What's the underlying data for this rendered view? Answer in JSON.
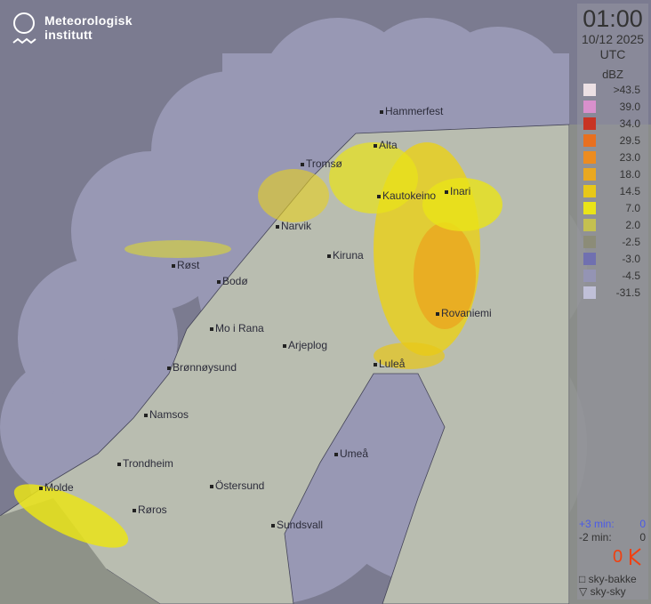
{
  "logo": {
    "line1": "Meteorologisk",
    "line2": "institutt"
  },
  "timestamp": {
    "time": "01:00",
    "date": "10/12 2025",
    "zone": "UTC"
  },
  "legend": {
    "unit": "dBZ",
    "items": [
      {
        "label": ">43.5",
        "color": "#ece0e4"
      },
      {
        "label": "39.0",
        "color": "#d890cc"
      },
      {
        "label": "34.0",
        "color": "#c83424"
      },
      {
        "label": "29.5",
        "color": "#e87020"
      },
      {
        "label": "23.0",
        "color": "#ec8c20"
      },
      {
        "label": "18.0",
        "color": "#eaa820"
      },
      {
        "label": "14.5",
        "color": "#e8c818"
      },
      {
        "label": "7.0",
        "color": "#eae418"
      },
      {
        "label": "2.0",
        "color": "#c4c050"
      },
      {
        "label": "-2.5",
        "color": "#8c8c78"
      },
      {
        "label": "-3.0",
        "color": "#7070b0"
      },
      {
        "label": "-4.5",
        "color": "#9494b4"
      },
      {
        "label": "-31.5",
        "color": "#c0c0d8"
      }
    ]
  },
  "minutes": {
    "plus_label": "+3 min:",
    "plus_value": "0",
    "minus_label": "-2 min:",
    "minus_value": "0"
  },
  "lightning": {
    "count": "0",
    "icon": "lightning-icon",
    "color": "#f04010"
  },
  "station_types": [
    {
      "label": "sky-bakke",
      "icon": "square-icon"
    },
    {
      "label": "sky-sky",
      "icon": "triangle-down-icon"
    }
  ],
  "cities": [
    "Hammerfest",
    "Alta",
    "Tromsø",
    "Kautokeino",
    "Inari",
    "Narvik",
    "Kiruna",
    "Røst",
    "Bodø",
    "Rovaniemi",
    "Mo i Rana",
    "Arjeplog",
    "Luleå",
    "Brønnøysund",
    "Namsos",
    "Umeå",
    "Trondheim",
    "Östersund",
    "Molde",
    "Røros",
    "Sundsvall"
  ]
}
